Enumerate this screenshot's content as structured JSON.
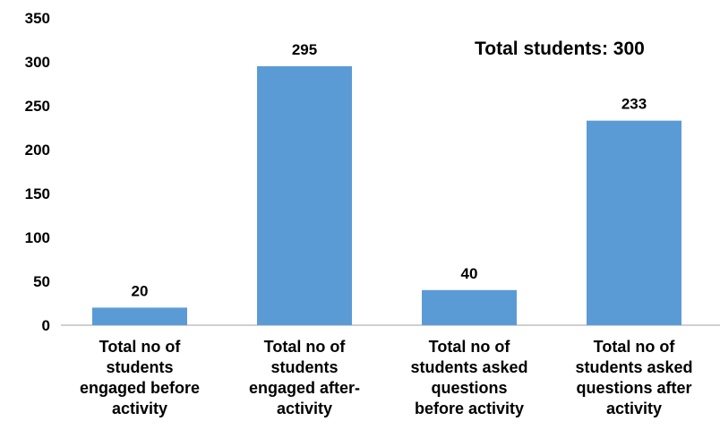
{
  "chart_data": {
    "type": "bar",
    "categories": [
      "Total no of students engaged before activity",
      "Total no of students engaged after-activity",
      "Total no of students asked questions before activity",
      "Total no of students asked questions after activity"
    ],
    "category_lines": [
      [
        "Total no of",
        "students",
        "engaged before",
        "activity"
      ],
      [
        "Total no of",
        "students",
        "engaged after-",
        "activity"
      ],
      [
        "Total no of",
        "students asked",
        "questions",
        "before activity"
      ],
      [
        "Total no of",
        "students asked",
        "questions after",
        "activity"
      ]
    ],
    "values": [
      20,
      295,
      40,
      233
    ],
    "data_labels": [
      "20",
      "295",
      "40",
      "233"
    ],
    "ylim": [
      0,
      350
    ],
    "yticks": [
      "0",
      "50",
      "100",
      "150",
      "200",
      "250",
      "300",
      "350"
    ],
    "annotation": "Total students: 300",
    "bar_color": "#5b9bd5",
    "grid": false,
    "legend": "none"
  }
}
